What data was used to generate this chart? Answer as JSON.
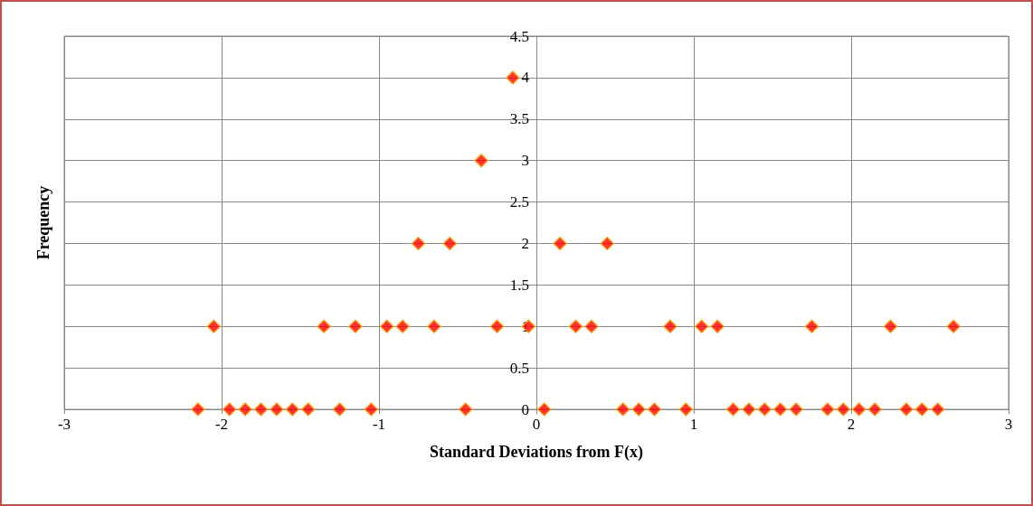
{
  "chart_data": {
    "type": "scatter",
    "xlabel": "Standard Deviations from F(x)",
    "ylabel": "Frequency",
    "x": [
      -2.15,
      -1.95,
      -1.85,
      -1.75,
      -1.65,
      -1.55,
      -1.45,
      -1.25,
      -1.05,
      -0.45,
      0.05,
      0.55,
      0.65,
      0.75,
      0.95,
      1.25,
      1.35,
      1.45,
      1.55,
      1.65,
      1.85,
      1.95,
      2.05,
      2.15,
      2.35,
      2.45,
      2.55,
      -2.05,
      -1.35,
      -1.15,
      -0.95,
      -0.85,
      -0.65,
      -0.25,
      -0.05,
      0.25,
      0.35,
      0.85,
      1.05,
      1.15,
      1.75,
      2.25,
      2.65,
      -0.75,
      -0.55,
      0.15,
      0.45,
      -0.35,
      -0.15
    ],
    "series": [
      {
        "color": "#ff0000",
        "values": [
          0,
          0,
          0,
          0,
          0,
          0,
          0,
          0,
          0,
          0,
          0,
          0,
          0,
          0,
          0,
          0,
          0,
          0,
          0,
          0,
          0,
          0,
          0,
          0,
          0,
          0,
          0,
          1,
          1,
          1,
          1,
          1,
          1,
          1,
          1,
          1,
          1,
          1,
          1,
          1,
          1,
          1,
          1,
          2,
          2,
          2,
          2,
          3,
          4
        ]
      }
    ],
    "xlim": [
      -3,
      3
    ],
    "xticks": [
      -3,
      -2,
      -1,
      0,
      1,
      2,
      3
    ],
    "ylim": [
      0,
      4.5
    ],
    "yticks": [
      0,
      0.5,
      1,
      1.5,
      2,
      2.5,
      3,
      3.5,
      4,
      4.5
    ],
    "grid": true,
    "marker": "diamond"
  }
}
